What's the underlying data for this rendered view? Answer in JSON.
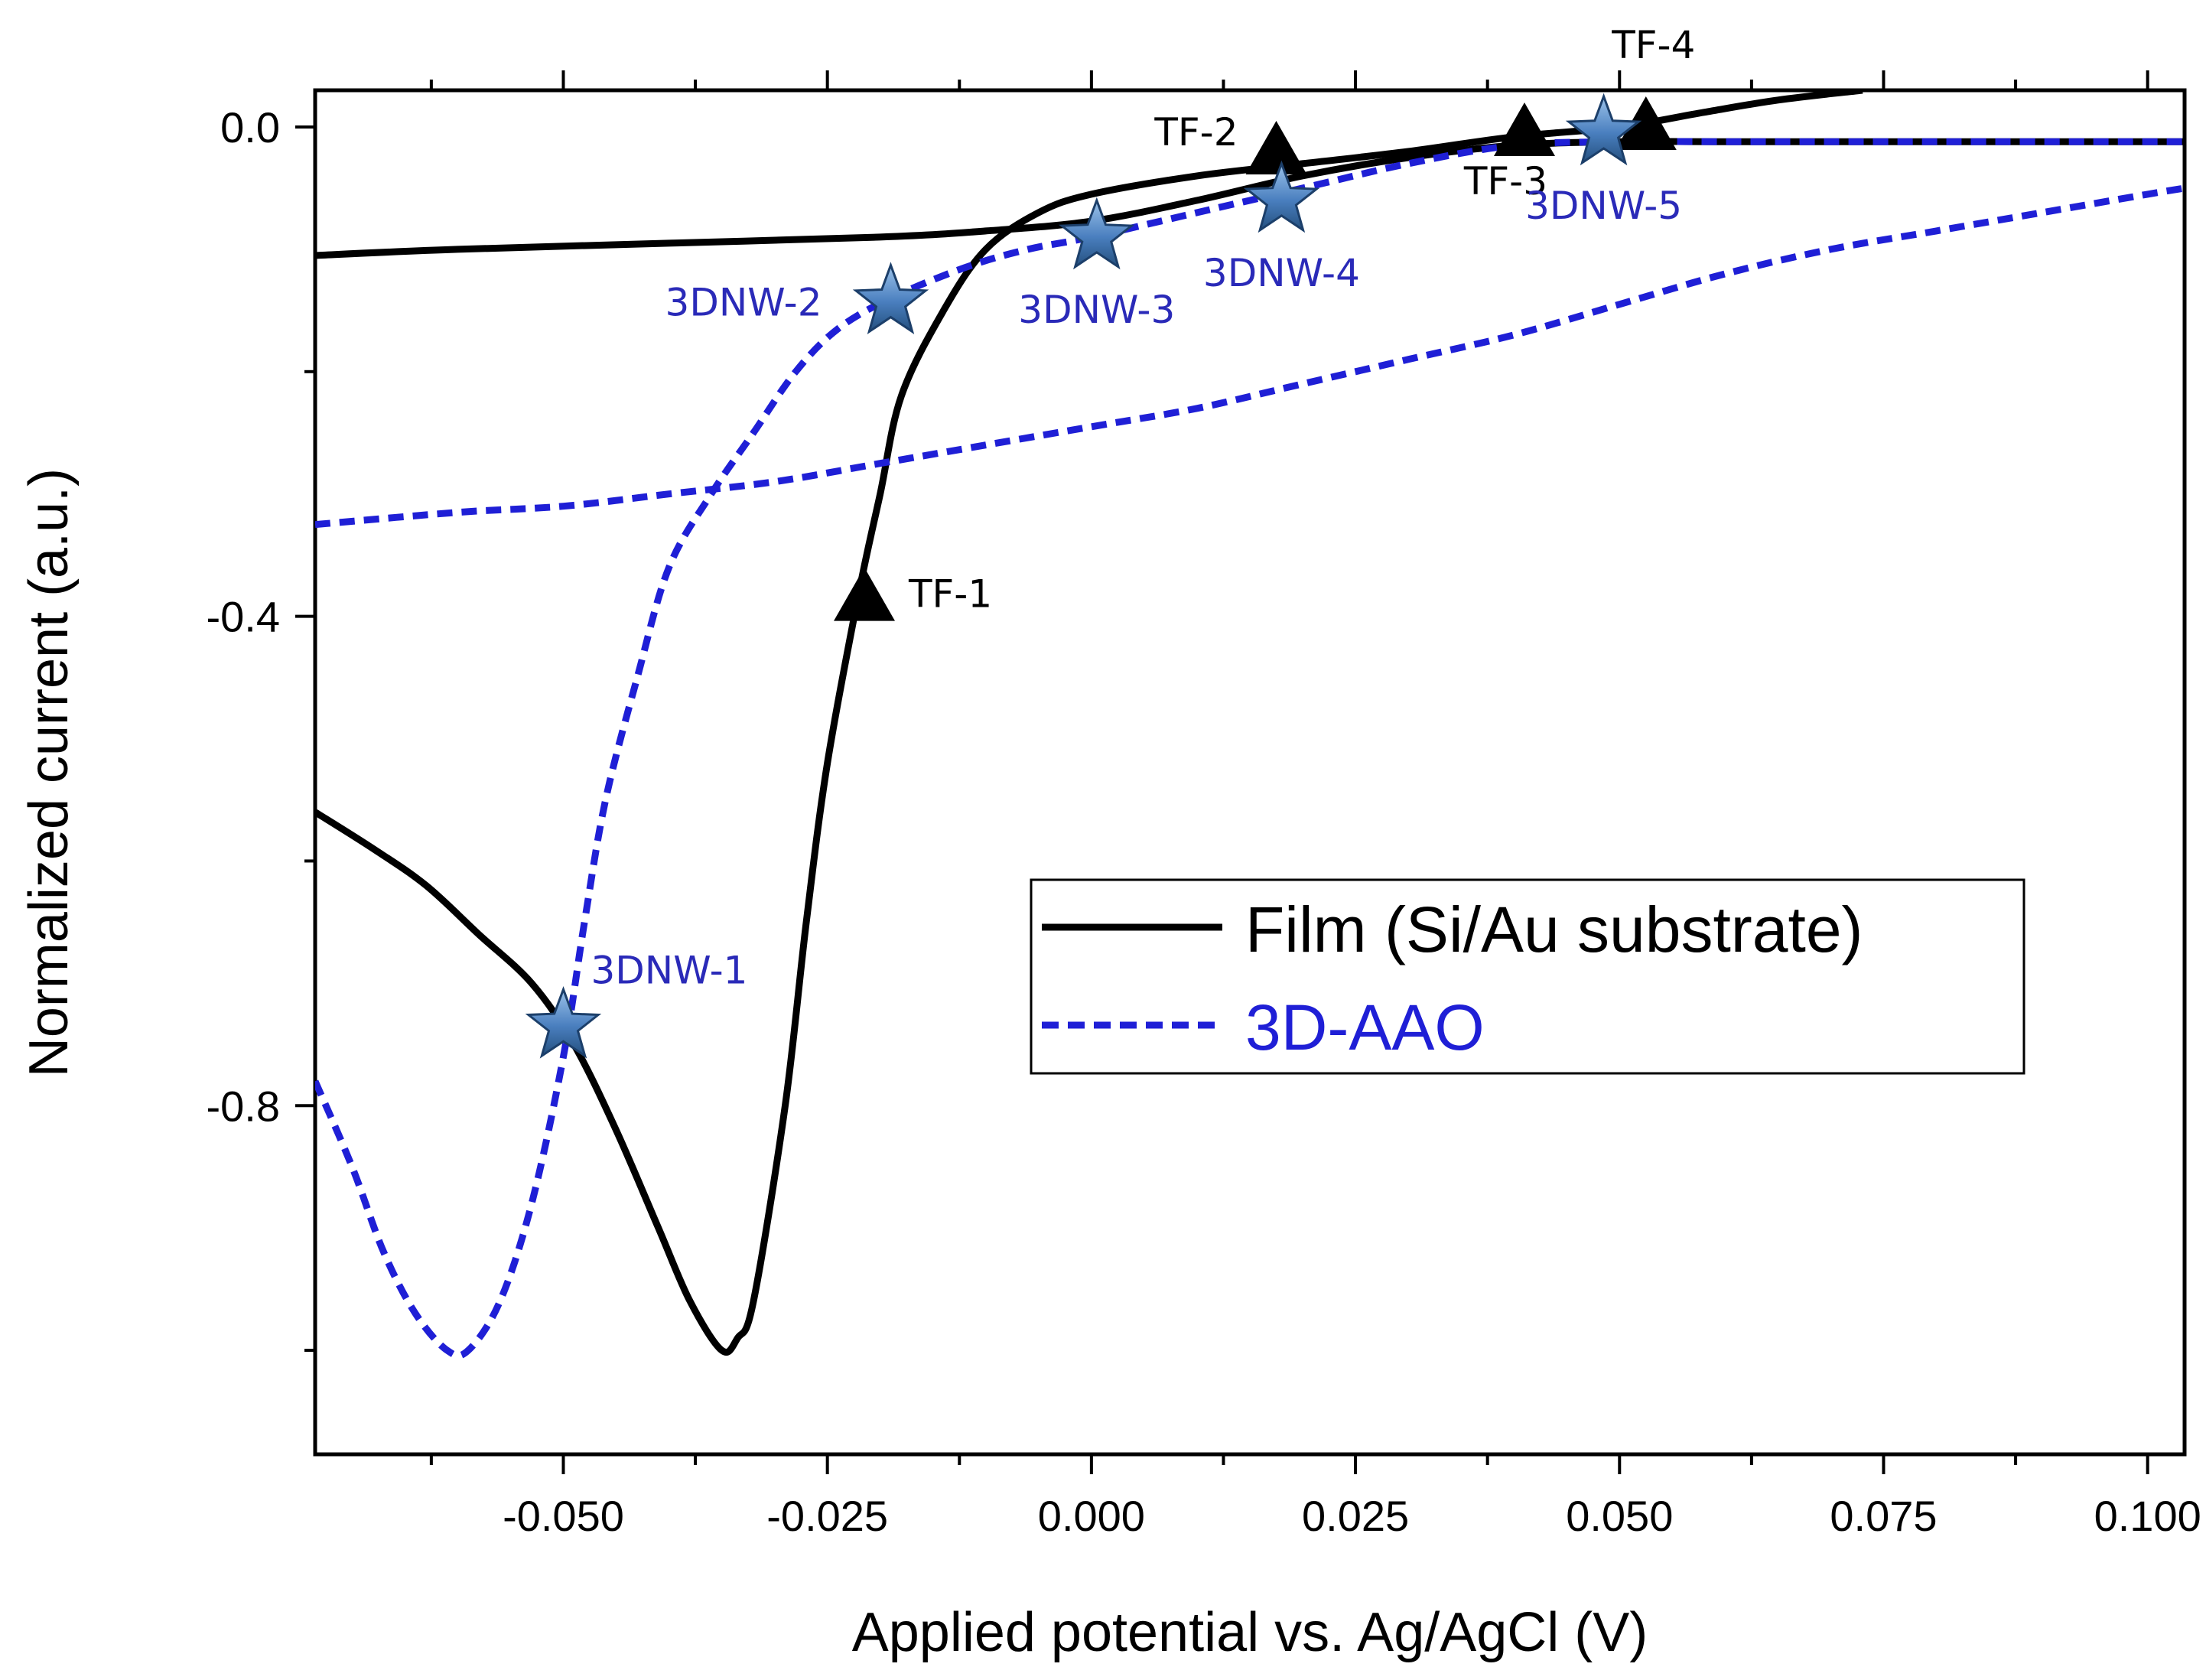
{
  "chart_data": {
    "type": "line",
    "xlabel": "Applied potential vs. Ag/AgCl (V)",
    "ylabel": "Normalized current (a.u.)",
    "xlim": [
      -0.0735,
      0.1035
    ],
    "ylim": [
      -1.085,
      0.03
    ],
    "x_ticks": [
      -0.05,
      -0.025,
      0.0,
      0.025,
      0.05,
      0.075,
      0.1
    ],
    "x_tick_labels": [
      "-0.050",
      "-0.025",
      "0.000",
      "0.025",
      "0.050",
      "0.075",
      "0.100"
    ],
    "y_ticks": [
      0.0,
      -0.4,
      -0.8
    ],
    "y_tick_labels": [
      "0.0",
      "-0.4",
      "-0.8"
    ],
    "series": [
      {
        "name": "Film (Si/Au substrate)",
        "color": "#000000",
        "dash": "solid",
        "points": [
          [
            -0.0735,
            -0.56
          ],
          [
            -0.068,
            -0.59
          ],
          [
            -0.063,
            -0.62
          ],
          [
            -0.058,
            -0.66
          ],
          [
            -0.053,
            -0.7
          ],
          [
            -0.049,
            -0.75
          ],
          [
            -0.045,
            -0.82
          ],
          [
            -0.041,
            -0.9
          ],
          [
            -0.038,
            -0.96
          ],
          [
            -0.035,
            -1.0
          ],
          [
            -0.0335,
            -0.99
          ],
          [
            -0.032,
            -0.96
          ],
          [
            -0.029,
            -0.8
          ],
          [
            -0.027,
            -0.65
          ],
          [
            -0.025,
            -0.52
          ],
          [
            -0.022,
            -0.38
          ],
          [
            -0.02,
            -0.3
          ],
          [
            -0.018,
            -0.22
          ],
          [
            -0.014,
            -0.15
          ],
          [
            -0.01,
            -0.1
          ],
          [
            -0.005,
            -0.07
          ],
          [
            0.0,
            -0.055
          ],
          [
            0.01,
            -0.04
          ],
          [
            0.02,
            -0.03
          ],
          [
            0.03,
            -0.02
          ],
          [
            0.04,
            -0.008
          ],
          [
            0.05,
            0.0
          ],
          [
            0.058,
            0.012
          ],
          [
            0.065,
            0.022
          ],
          [
            0.073,
            0.03
          ]
        ]
      },
      {
        "name": "Film (Si/Au substrate)",
        "color": "#000000",
        "dash": "solid",
        "points": [
          [
            -0.0735,
            -0.105
          ],
          [
            -0.06,
            -0.1
          ],
          [
            -0.04,
            -0.095
          ],
          [
            -0.02,
            -0.09
          ],
          [
            -0.01,
            -0.085
          ],
          [
            0.0,
            -0.077
          ],
          [
            0.01,
            -0.06
          ],
          [
            0.02,
            -0.04
          ],
          [
            0.03,
            -0.025
          ],
          [
            0.04,
            -0.015
          ],
          [
            0.05,
            -0.012
          ],
          [
            0.06,
            -0.012
          ],
          [
            0.08,
            -0.012
          ],
          [
            0.1035,
            -0.012
          ]
        ]
      },
      {
        "name": "3D-AAO",
        "color": "#1f1fd6",
        "dash": "dashed",
        "points": [
          [
            -0.0735,
            -0.78
          ],
          [
            -0.07,
            -0.85
          ],
          [
            -0.067,
            -0.92
          ],
          [
            -0.064,
            -0.97
          ],
          [
            -0.061,
            -1.0
          ],
          [
            -0.059,
            -1.0
          ],
          [
            -0.056,
            -0.96
          ],
          [
            -0.053,
            -0.88
          ],
          [
            -0.05,
            -0.76
          ],
          [
            -0.048,
            -0.65
          ],
          [
            -0.046,
            -0.55
          ],
          [
            -0.043,
            -0.45
          ],
          [
            -0.04,
            -0.36
          ],
          [
            -0.036,
            -0.3
          ],
          [
            -0.032,
            -0.25
          ],
          [
            -0.028,
            -0.2
          ],
          [
            -0.024,
            -0.165
          ],
          [
            -0.019,
            -0.14
          ],
          [
            -0.012,
            -0.115
          ],
          [
            -0.006,
            -0.1
          ],
          [
            0.0,
            -0.09
          ],
          [
            0.01,
            -0.07
          ],
          [
            0.02,
            -0.05
          ],
          [
            0.03,
            -0.03
          ],
          [
            0.04,
            -0.015
          ],
          [
            0.05,
            -0.012
          ],
          [
            0.06,
            -0.012
          ],
          [
            0.08,
            -0.012
          ],
          [
            0.1035,
            -0.012
          ]
        ]
      },
      {
        "name": "3D-AAO",
        "color": "#1f1fd6",
        "dash": "dashed",
        "points": [
          [
            -0.0735,
            -0.325
          ],
          [
            -0.06,
            -0.315
          ],
          [
            -0.05,
            -0.31
          ],
          [
            -0.04,
            -0.3
          ],
          [
            -0.03,
            -0.29
          ],
          [
            -0.02,
            -0.275
          ],
          [
            -0.01,
            -0.26
          ],
          [
            0.0,
            -0.245
          ],
          [
            0.01,
            -0.23
          ],
          [
            0.02,
            -0.21
          ],
          [
            0.03,
            -0.19
          ],
          [
            0.04,
            -0.17
          ],
          [
            0.05,
            -0.145
          ],
          [
            0.06,
            -0.12
          ],
          [
            0.07,
            -0.1
          ],
          [
            0.08,
            -0.085
          ],
          [
            0.09,
            -0.07
          ],
          [
            0.1,
            -0.055
          ],
          [
            0.1035,
            -0.05
          ]
        ]
      }
    ],
    "markers": [
      {
        "label": "TF-1",
        "shape": "triangle",
        "x": -0.0215,
        "y": -0.385,
        "label_pos": "right"
      },
      {
        "label": "TF-2",
        "shape": "triangle",
        "x": 0.0175,
        "y": -0.02,
        "label_pos": "left-top"
      },
      {
        "label": "TF-3",
        "shape": "triangle",
        "x": 0.041,
        "y": -0.005,
        "label_pos": "below-left"
      },
      {
        "label": "TF-4",
        "shape": "triangle",
        "x": 0.0525,
        "y": 0.0,
        "label_pos": "above"
      },
      {
        "label": "3DNW-1",
        "shape": "star",
        "x": -0.05,
        "y": -0.735,
        "label_pos": "above-right"
      },
      {
        "label": "3DNW-2",
        "shape": "star",
        "x": -0.019,
        "y": -0.143,
        "label_pos": "left"
      },
      {
        "label": "3DNW-3",
        "shape": "star",
        "x": 0.0005,
        "y": -0.09,
        "label_pos": "below"
      },
      {
        "label": "3DNW-4",
        "shape": "star",
        "x": 0.018,
        "y": -0.06,
        "label_pos": "below"
      },
      {
        "label": "3DNW-5",
        "shape": "star",
        "x": 0.0485,
        "y": -0.005,
        "label_pos": "below"
      }
    ],
    "legend": {
      "placement": "center-right",
      "entries": [
        {
          "label": "Film (Si/Au substrate)",
          "color": "#000000",
          "dash": "solid"
        },
        {
          "label": "3D-AAO",
          "color": "#1f1fd6",
          "dash": "dashed"
        }
      ]
    }
  }
}
